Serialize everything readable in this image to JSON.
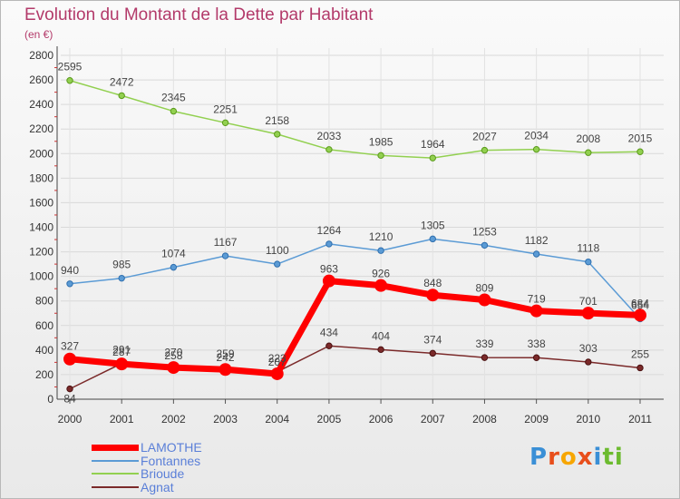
{
  "title": "Evolution du Montant de la Dette par Habitant",
  "subtitle": "(en €)",
  "logo": [
    "P",
    "r",
    "o",
    "x",
    "i",
    "t",
    "i"
  ],
  "chart_data": {
    "type": "line",
    "x": [
      "2000",
      "2001",
      "2002",
      "2003",
      "2004",
      "2005",
      "2006",
      "2007",
      "2008",
      "2009",
      "2010",
      "2011"
    ],
    "ylim": [
      0,
      2800
    ],
    "yticks": [
      0,
      200,
      400,
      600,
      800,
      1000,
      1200,
      1400,
      1600,
      1800,
      2000,
      2200,
      2400,
      2600,
      2800
    ],
    "grid": true,
    "legend_position": "bottom-left",
    "series": [
      {
        "name": "LAMOTHE",
        "color": "#ff0000",
        "values": [
          327,
          287,
          258,
          242,
          207,
          963,
          926,
          848,
          809,
          719,
          701,
          684
        ]
      },
      {
        "name": "Fontannes",
        "color": "#5b9bd5",
        "values": [
          940,
          985,
          1074,
          1167,
          1100,
          1264,
          1210,
          1305,
          1253,
          1182,
          1118,
          654
        ]
      },
      {
        "name": "Brioude",
        "color": "#92d050",
        "values": [
          2595,
          2472,
          2345,
          2251,
          2158,
          2033,
          1985,
          1964,
          2027,
          2034,
          2008,
          2015
        ]
      },
      {
        "name": "Agnat",
        "color": "#7b2a2a",
        "values": [
          84,
          291,
          270,
          259,
          223,
          434,
          404,
          374,
          339,
          338,
          303,
          255
        ]
      }
    ]
  }
}
